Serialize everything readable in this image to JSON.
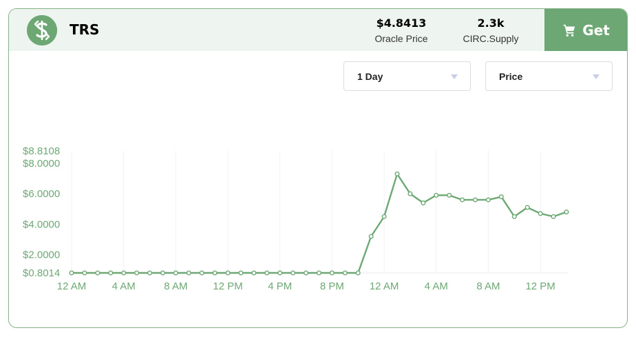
{
  "header": {
    "ticker": "TRS",
    "logo_icon": "dollar-arrows-icon",
    "oracle_price": {
      "value": "$4.8413",
      "label": "Oracle Price"
    },
    "circ_supply": {
      "value": "2.3k",
      "label": "CIRC.Supply"
    },
    "get_button": {
      "label": "Get",
      "icon": "cart-icon"
    }
  },
  "controls": {
    "timeframe_select": {
      "value": "1 Day"
    },
    "metric_select": {
      "value": "Price"
    }
  },
  "colors": {
    "accent": "#6da874",
    "header_bg": "#eef5f0",
    "border": "#86b28a"
  },
  "chart_data": {
    "type": "line",
    "y_ticks": [
      "$8.8108",
      "$8.0000",
      "$6.0000",
      "$4.0000",
      "$2.0000",
      "$0.8014"
    ],
    "x_ticks": [
      "12 AM",
      "4 AM",
      "8 AM",
      "12 PM",
      "4 PM",
      "8 PM",
      "12 AM",
      "4 AM",
      "8 AM",
      "12 PM"
    ],
    "ylim": [
      0.8014,
      8.8108
    ],
    "x_hours": [
      0,
      1,
      2,
      3,
      4,
      5,
      6,
      7,
      8,
      9,
      10,
      11,
      12,
      13,
      14,
      15,
      16,
      17,
      18,
      19,
      20,
      21,
      22,
      23,
      24,
      25,
      26,
      27,
      28,
      29,
      30,
      31,
      32,
      33,
      34,
      35,
      36,
      37,
      38
    ],
    "values": [
      0.8014,
      0.8014,
      0.8014,
      0.8014,
      0.8014,
      0.8014,
      0.8014,
      0.8014,
      0.8014,
      0.8014,
      0.8014,
      0.8014,
      0.8014,
      0.8014,
      0.8014,
      0.8014,
      0.8014,
      0.8014,
      0.8014,
      0.8014,
      0.8014,
      0.8014,
      0.8014,
      3.2,
      4.5,
      7.3,
      6.0,
      5.4,
      5.9,
      5.9,
      5.6,
      5.6,
      5.6,
      5.8,
      4.5,
      5.1,
      4.7,
      4.5,
      4.8
    ],
    "grid": true,
    "xlabel": "",
    "ylabel": ""
  }
}
